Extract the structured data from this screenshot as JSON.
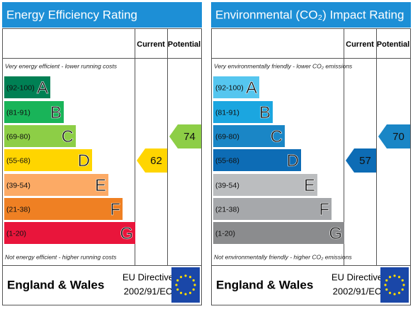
{
  "panels": [
    {
      "title": "Energy Efficiency Rating",
      "columns": [
        "Current",
        "Potential"
      ],
      "top_note": "Very energy efficient - lower running costs",
      "bottom_note": "Not energy efficient - higher running costs",
      "bands": [
        {
          "range": "(92-100)",
          "letter": "A",
          "color": "#008054"
        },
        {
          "range": "(81-91)",
          "letter": "B",
          "color": "#19b459"
        },
        {
          "range": "(69-80)",
          "letter": "C",
          "color": "#8dce46"
        },
        {
          "range": "(55-68)",
          "letter": "D",
          "color": "#ffd500"
        },
        {
          "range": "(39-54)",
          "letter": "E",
          "color": "#fcaa65"
        },
        {
          "range": "(21-38)",
          "letter": "F",
          "color": "#ef8023"
        },
        {
          "range": "(1-20)",
          "letter": "G",
          "color": "#e9153b"
        }
      ],
      "current": 62,
      "potential": 74,
      "footer": {
        "region": "England & Wales",
        "directive": "EU Directive",
        "code": "2002/91/EC"
      }
    },
    {
      "title": "Environmental (CO₂) Impact Rating",
      "columns": [
        "Current",
        "Potential"
      ],
      "top_note": "Very environmentally friendly - lower CO₂ emissions",
      "bottom_note": "Not environmentally friendly - higher CO₂ emissions",
      "bands": [
        {
          "range": "(92-100)",
          "letter": "A",
          "color": "#55c6ef"
        },
        {
          "range": "(81-91)",
          "letter": "B",
          "color": "#1ba6e0"
        },
        {
          "range": "(69-80)",
          "letter": "C",
          "color": "#1a86c6"
        },
        {
          "range": "(55-68)",
          "letter": "D",
          "color": "#0d6cb5"
        },
        {
          "range": "(39-54)",
          "letter": "E",
          "color": "#bbbdbf"
        },
        {
          "range": "(21-38)",
          "letter": "F",
          "color": "#a6a8ab"
        },
        {
          "range": "(1-20)",
          "letter": "G",
          "color": "#8b8c8e"
        }
      ],
      "current": 57,
      "potential": 70,
      "footer": {
        "region": "England & Wales",
        "directive": "EU Directive",
        "code": "2002/91/EC"
      }
    }
  ]
}
